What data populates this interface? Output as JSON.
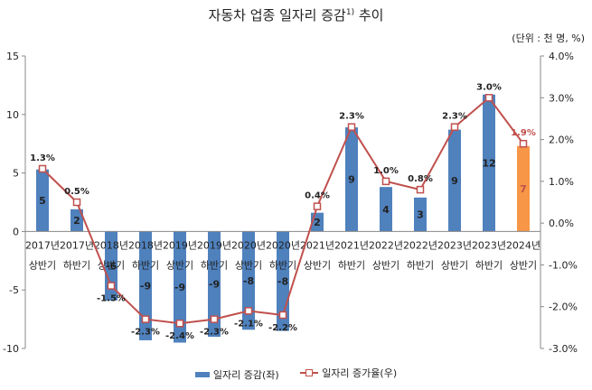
{
  "title_main": "자동차 업종 일자리 증감",
  "title_sup": "1)",
  "title_suffix": " 추이",
  "unit": "(단위 : 천 명, %)",
  "colors": {
    "bar": "#4f81bd",
    "bar_highlight": "#f79646",
    "line": "#c0504d"
  },
  "legend": {
    "bar_label": "일자리 증감(좌)",
    "line_label": "일자리 증가율(우)"
  },
  "chart_data": {
    "type": "bar",
    "categories": [
      [
        "2017년",
        "상반기"
      ],
      [
        "2017년",
        "하반기"
      ],
      [
        "2018년",
        "상반기"
      ],
      [
        "2018년",
        "하반기"
      ],
      [
        "2019년",
        "상반기"
      ],
      [
        "2019년",
        "하반기"
      ],
      [
        "2020년",
        "상반기"
      ],
      [
        "2020년",
        "하반기"
      ],
      [
        "2021년",
        "상반기"
      ],
      [
        "2021년",
        "하반기"
      ],
      [
        "2022년",
        "상반기"
      ],
      [
        "2022년",
        "하반기"
      ],
      [
        "2023년",
        "상반기"
      ],
      [
        "2023년",
        "하반기"
      ],
      [
        "2024년",
        "상반기"
      ]
    ],
    "series": [
      {
        "name": "일자리 증감(좌)",
        "type": "bar",
        "axis": "left",
        "values": [
          5.3,
          1.9,
          -5.9,
          -9.3,
          -9.5,
          -9.0,
          -8.4,
          -8.5,
          1.6,
          8.9,
          3.8,
          2.9,
          8.7,
          11.7,
          7.3
        ],
        "labels": [
          "5",
          "2",
          "-6",
          "-9",
          "-9",
          "-9",
          "-8",
          "-8",
          "2",
          "9",
          "4",
          "3",
          "9",
          "12",
          "7"
        ]
      },
      {
        "name": "일자리 증가율(우)",
        "type": "line",
        "axis": "right",
        "values": [
          1.3,
          0.5,
          -1.5,
          -2.3,
          -2.4,
          -2.3,
          -2.1,
          -2.2,
          0.4,
          2.3,
          1.0,
          0.8,
          2.3,
          3.0,
          1.9
        ],
        "labels": [
          "1.3%",
          "0.5%",
          "-1.5%",
          "-2.3%",
          "-2.4%",
          "-2.3%",
          "-2.1%",
          "-2.2%",
          "0.4%",
          "2.3%",
          "1.0%",
          "0.8%",
          "2.3%",
          "3.0%",
          "1.9%"
        ]
      }
    ],
    "y_left": {
      "range": [
        -10,
        15
      ],
      "ticks": [
        "-10",
        "-5",
        "0",
        "5",
        "10",
        "15"
      ],
      "tick_values": [
        -10,
        -5,
        0,
        5,
        10,
        15
      ]
    },
    "y_right": {
      "range": [
        -3.0,
        4.0
      ],
      "ticks": [
        "-3.0%",
        "-2.0%",
        "-1.0%",
        "0.0%",
        "1.0%",
        "2.0%",
        "3.0%",
        "4.0%"
      ],
      "tick_values": [
        -3,
        -2,
        -1,
        0,
        1,
        2,
        3,
        4
      ]
    },
    "legend_position": "bottom",
    "grid": false
  }
}
